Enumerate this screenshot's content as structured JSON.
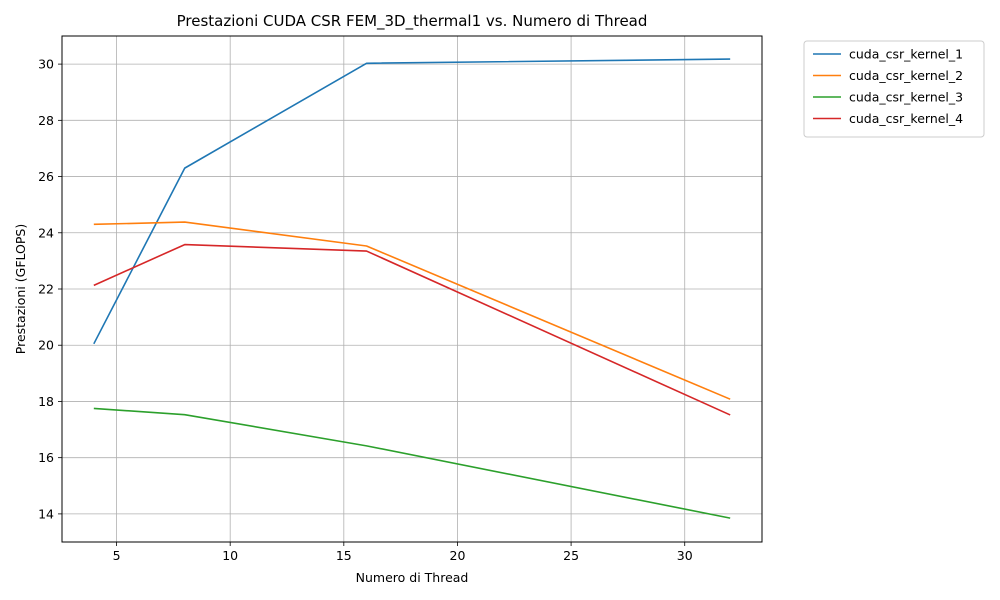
{
  "chart_data": {
    "type": "line",
    "title": "Prestazioni CUDA CSR FEM_3D_thermal1 vs. Numero di Thread",
    "xlabel": "Numero di Thread",
    "ylabel": "Prestazioni (GFLOPS)",
    "xlim": [
      2.6,
      33.4
    ],
    "ylim": [
      13.0,
      31.0
    ],
    "xticks": [
      5,
      10,
      15,
      20,
      25,
      30
    ],
    "yticks": [
      14,
      16,
      18,
      20,
      22,
      24,
      26,
      28,
      30
    ],
    "grid": true,
    "legend_position": "outside-top-right",
    "x": [
      4,
      8,
      16,
      32
    ],
    "series": [
      {
        "name": "cuda_csr_kernel_1",
        "color": "#1f77b4",
        "values": [
          20.05,
          26.3,
          30.03,
          30.18
        ]
      },
      {
        "name": "cuda_csr_kernel_2",
        "color": "#ff7f0e",
        "values": [
          24.3,
          24.38,
          23.53,
          18.08
        ]
      },
      {
        "name": "cuda_csr_kernel_3",
        "color": "#2ca02c",
        "values": [
          17.75,
          17.53,
          16.42,
          13.85
        ]
      },
      {
        "name": "cuda_csr_kernel_4",
        "color": "#d62728",
        "values": [
          22.13,
          23.58,
          23.35,
          17.52
        ]
      }
    ]
  }
}
